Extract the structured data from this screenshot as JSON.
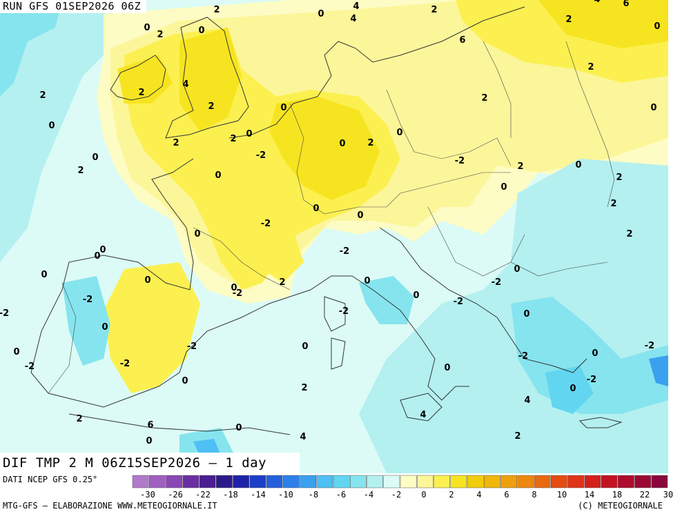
{
  "header": {
    "run": "RUN GFS 01SEP2026 06Z"
  },
  "valid": "DIF TMP 2 M 06Z15SEP2026 – 1 day",
  "footer": {
    "source": "DATI NCEP GFS 0.25°",
    "credit_left": "MTG-GFS – ELABORAZIONE WWW.METEOGIORNALE.IT",
    "credit_right": "(C) METEOGIORNALE"
  },
  "legend": {
    "colors": [
      "#b07acb",
      "#9f60c0",
      "#8a48b4",
      "#6a2fa3",
      "#4b1f92",
      "#2b1a8c",
      "#1e22a8",
      "#1d3fc8",
      "#2560dc",
      "#2d80ea",
      "#3aa0f0",
      "#4ec0f4",
      "#62d6f0",
      "#86e4ee",
      "#b4f0f0",
      "#dcfbf6",
      "#fdfcc4",
      "#fcf69a",
      "#fbf050",
      "#f7e420",
      "#f2cd0c",
      "#f0b60a",
      "#eea00c",
      "#ec880e",
      "#e86a10",
      "#e44c14",
      "#df3418",
      "#d4201c",
      "#c21222",
      "#ae0c2c",
      "#9b0834",
      "#8a063c"
    ],
    "tick_labels": [
      "-30",
      "-26",
      "-22",
      "-18",
      "-14",
      "-10",
      "-8",
      "-6",
      "-4",
      "-2",
      "0",
      "2",
      "4",
      "6",
      "8",
      "10",
      "14",
      "18",
      "22",
      "30"
    ]
  },
  "colors": {
    "cold2": "#6fd8ee",
    "cold1": "#b4f0f0",
    "cool0": "#dcfbf6",
    "warm0": "#fdfcc4",
    "warm2": "#fcf69a",
    "warm3": "#fbf050",
    "warm4": "#f7e420",
    "warm6": "#f2cd0c"
  },
  "contour_labels": [
    "-2",
    "2",
    "0",
    "4",
    "2",
    "4",
    "6",
    "0",
    "2",
    "0",
    "4",
    "2",
    "0",
    "6",
    "2",
    "2",
    "4",
    "2",
    "0",
    "2",
    "2",
    "0",
    "0",
    "2",
    "2",
    "0",
    "-2",
    "0",
    "2",
    "0",
    "0",
    "2",
    "0",
    "-2",
    "2",
    "0",
    "2",
    "0",
    "2",
    "0",
    "0",
    "-2",
    "0",
    "2",
    "0",
    "0",
    "-2",
    "0",
    "0",
    "0",
    "-2",
    "2",
    "0",
    "-2",
    "0",
    "-2",
    "0",
    "-2",
    "-2",
    "0",
    "0",
    "-2",
    "-2",
    "0",
    "0",
    "-2",
    "-2",
    "-2",
    "0",
    "-2",
    "0",
    "0"
  ]
}
